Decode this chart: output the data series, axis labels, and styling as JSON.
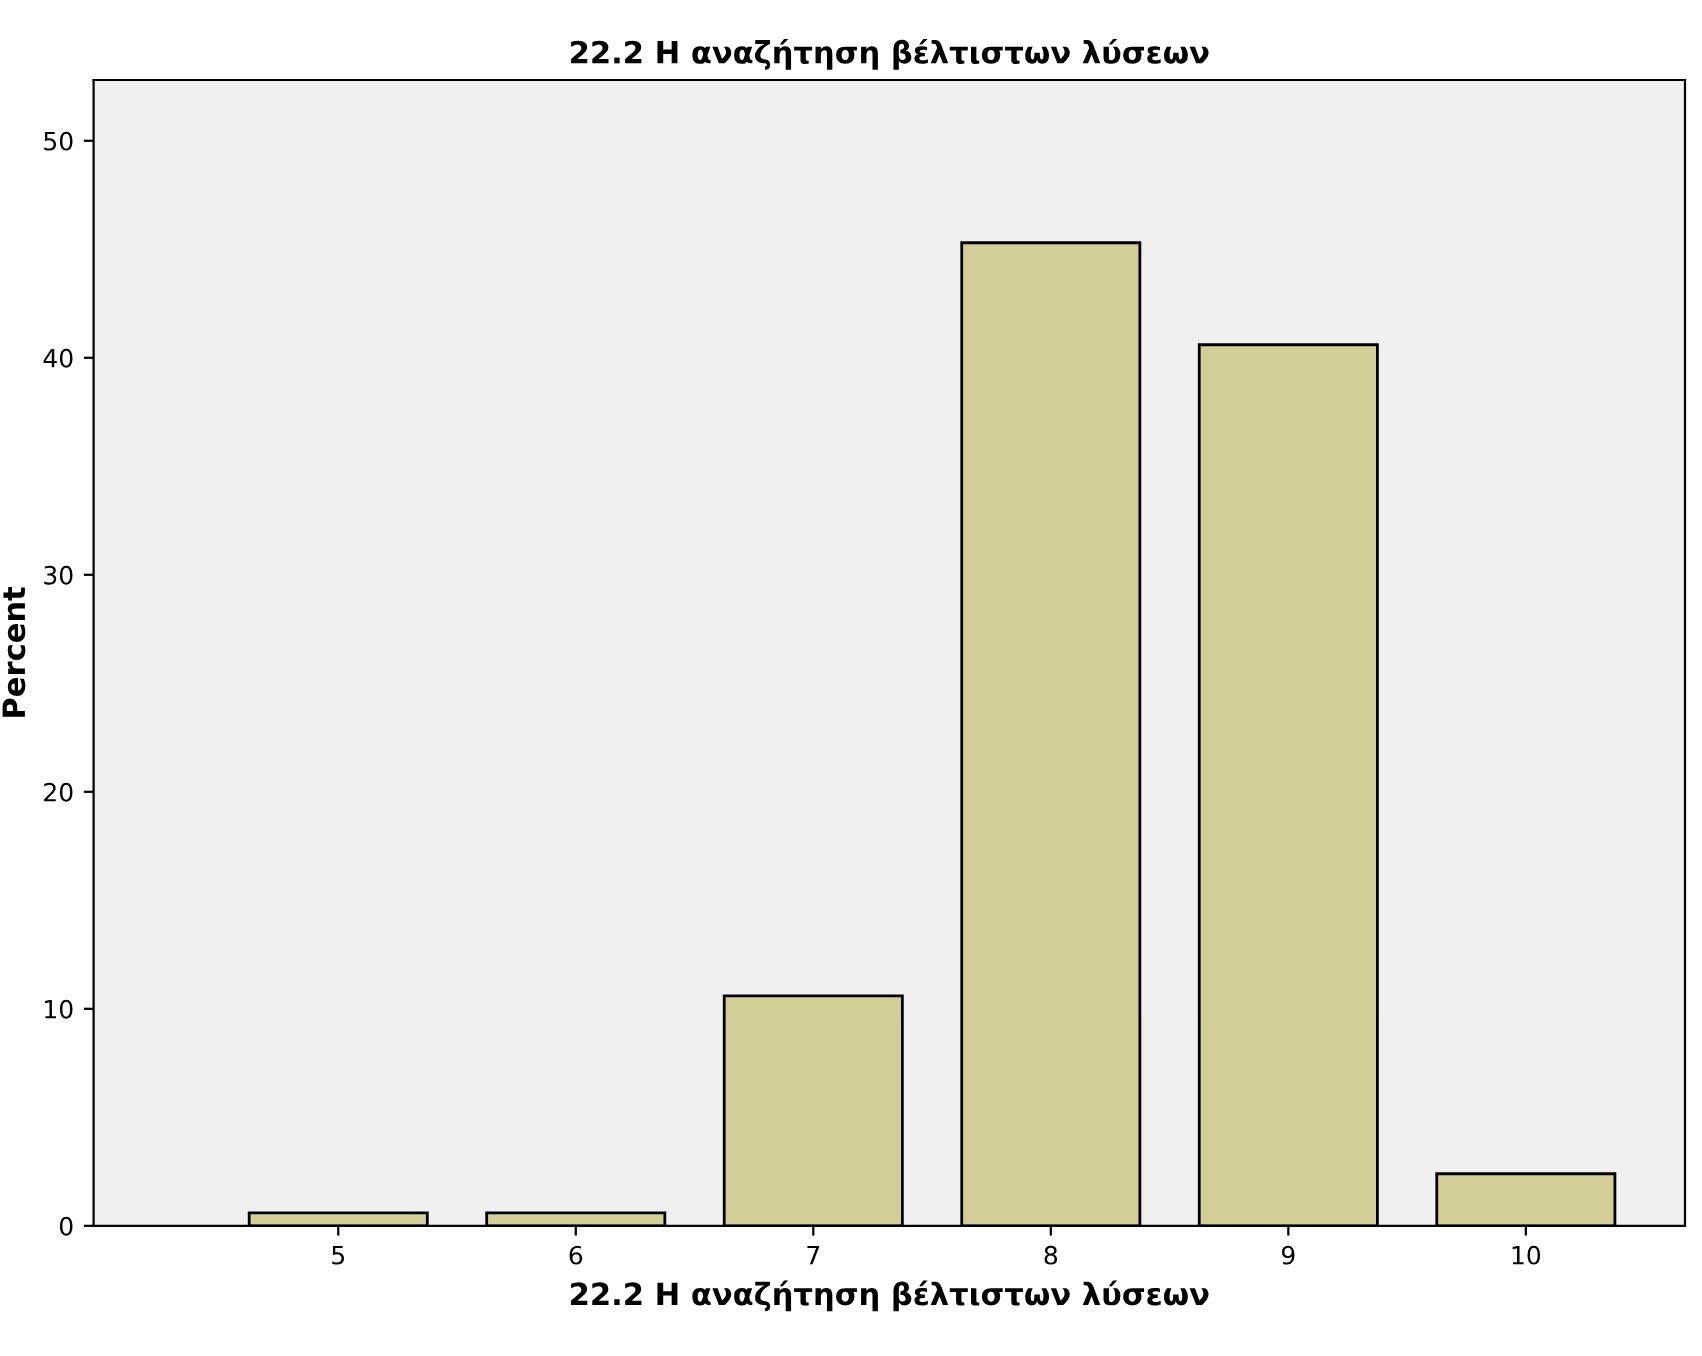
{
  "chart_data": {
    "type": "bar",
    "title": "22.2 Η αναζήτηση βέλτιστων λύσεων",
    "xlabel": "22.2 Η αναζήτηση βέλτιστων λύσεων",
    "ylabel": "Percent",
    "categories": [
      "5",
      "6",
      "7",
      "8",
      "9",
      "10"
    ],
    "values": [
      0.6,
      0.6,
      10.6,
      45.3,
      40.6,
      2.4
    ],
    "color": "#d3ce97",
    "ylim": [
      0,
      52.8
    ],
    "yticks": [
      0,
      10,
      20,
      30,
      40,
      50
    ],
    "grid": false
  }
}
